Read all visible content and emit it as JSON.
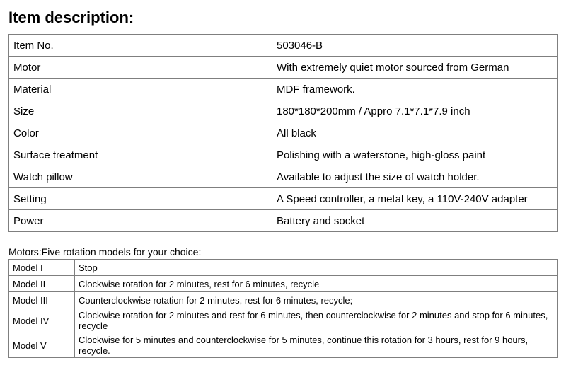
{
  "title": "Item description:",
  "spec_table": {
    "rows": [
      {
        "label": "Item No.",
        "value": "503046-B"
      },
      {
        "label": "Motor",
        "value": "With extremely quiet motor sourced from German"
      },
      {
        "label": "Material",
        "value": "MDF framework."
      },
      {
        "label": "Size",
        "value": "180*180*200mm / Appro 7.1*7.1*7.9 inch"
      },
      {
        "label": "Color",
        "value": "All black"
      },
      {
        "label": "Surface treatment",
        "value": "Polishing with a waterstone, high-gloss paint"
      },
      {
        "label": "Watch pillow",
        "value": "Available to adjust the size of watch holder."
      },
      {
        "label": "Setting",
        "value": "A Speed controller, a metal key, a 110V-240V adapter"
      },
      {
        "label": "Power",
        "value": "Battery and socket"
      }
    ]
  },
  "motors_caption": "Motors:Five rotation models for your choice:",
  "motor_table": {
    "rows": [
      {
        "model": "Model I",
        "desc": "Stop"
      },
      {
        "model": "Model II",
        "desc": "Clockwise rotation for 2 minutes, rest for 6 minutes, recycle"
      },
      {
        "model": "Model III",
        "desc": "Counterclockwise rotation for 2 minutes, rest for 6 minutes, recycle;"
      },
      {
        "model": "Model IV",
        "desc": "Clockwise rotation for 2 minutes and rest for 6 minutes, then counterclockwise for 2 minutes and stop for 6 minutes, recycle"
      },
      {
        "model": "Model V",
        "desc": "Clockwise for 5 minutes and counterclockwise for 5 minutes, continue this rotation for 3 hours, rest for 9 hours, recycle."
      }
    ]
  },
  "styling": {
    "title_fontsize": 22,
    "title_fontweight": "bold",
    "spec_fontsize": 15,
    "motor_fontsize": 13,
    "border_color": "#7f7f7f",
    "background_color": "#ffffff",
    "text_color": "#000000",
    "spec_col_widths": [
      "48%",
      "52%"
    ],
    "motor_col_widths": [
      "12%",
      "88%"
    ]
  }
}
